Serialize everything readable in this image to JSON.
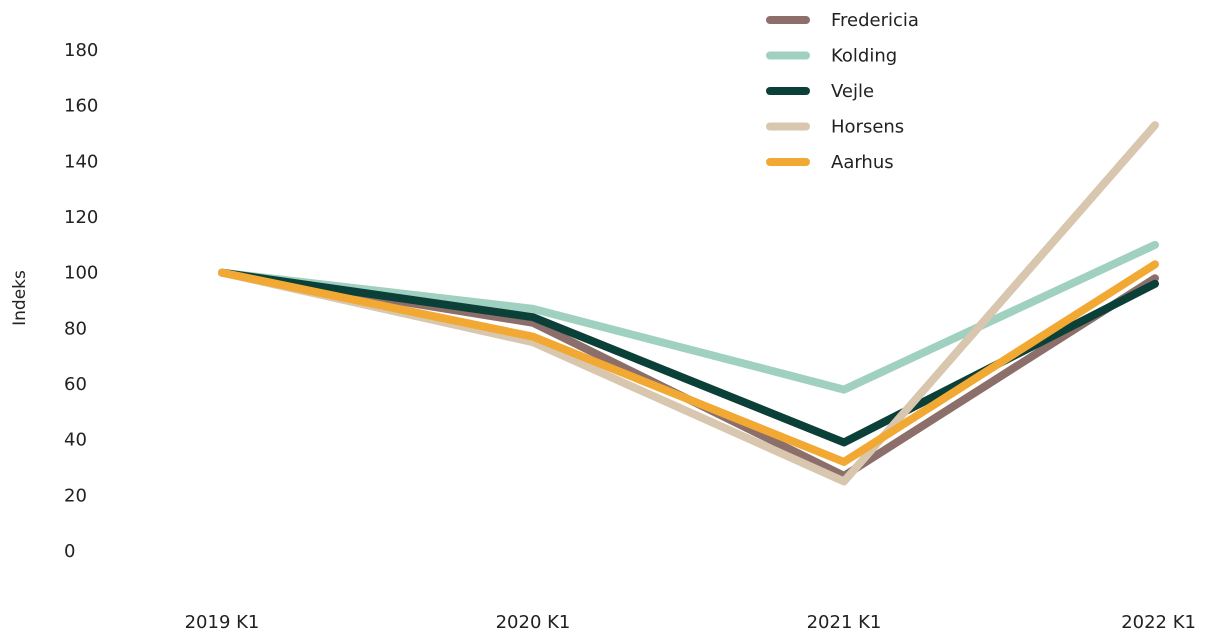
{
  "chart_data": {
    "type": "line",
    "title": "",
    "xlabel": "",
    "ylabel": "Indeks",
    "categories": [
      "2019 K1",
      "2020 K1",
      "2021 K1",
      "2022 K1"
    ],
    "yticks": [
      0,
      20,
      40,
      60,
      80,
      100,
      120,
      140,
      160,
      180
    ],
    "ylim": [
      0,
      180
    ],
    "grid": false,
    "legend_position": "top-right",
    "series": [
      {
        "name": "Fredericia",
        "color": "#8c6f6a",
        "values": [
          100,
          82,
          27,
          98
        ]
      },
      {
        "name": "Kolding",
        "color": "#9fd0c0",
        "values": [
          100,
          87,
          58,
          110
        ]
      },
      {
        "name": "Vejle",
        "color": "#0b4038",
        "values": [
          100,
          84,
          39,
          96
        ]
      },
      {
        "name": "Horsens",
        "color": "#d8c6ae",
        "values": [
          100,
          75,
          25,
          153
        ]
      },
      {
        "name": "Aarhus",
        "color": "#f2a934",
        "values": [
          100,
          77,
          32,
          103
        ]
      }
    ]
  }
}
